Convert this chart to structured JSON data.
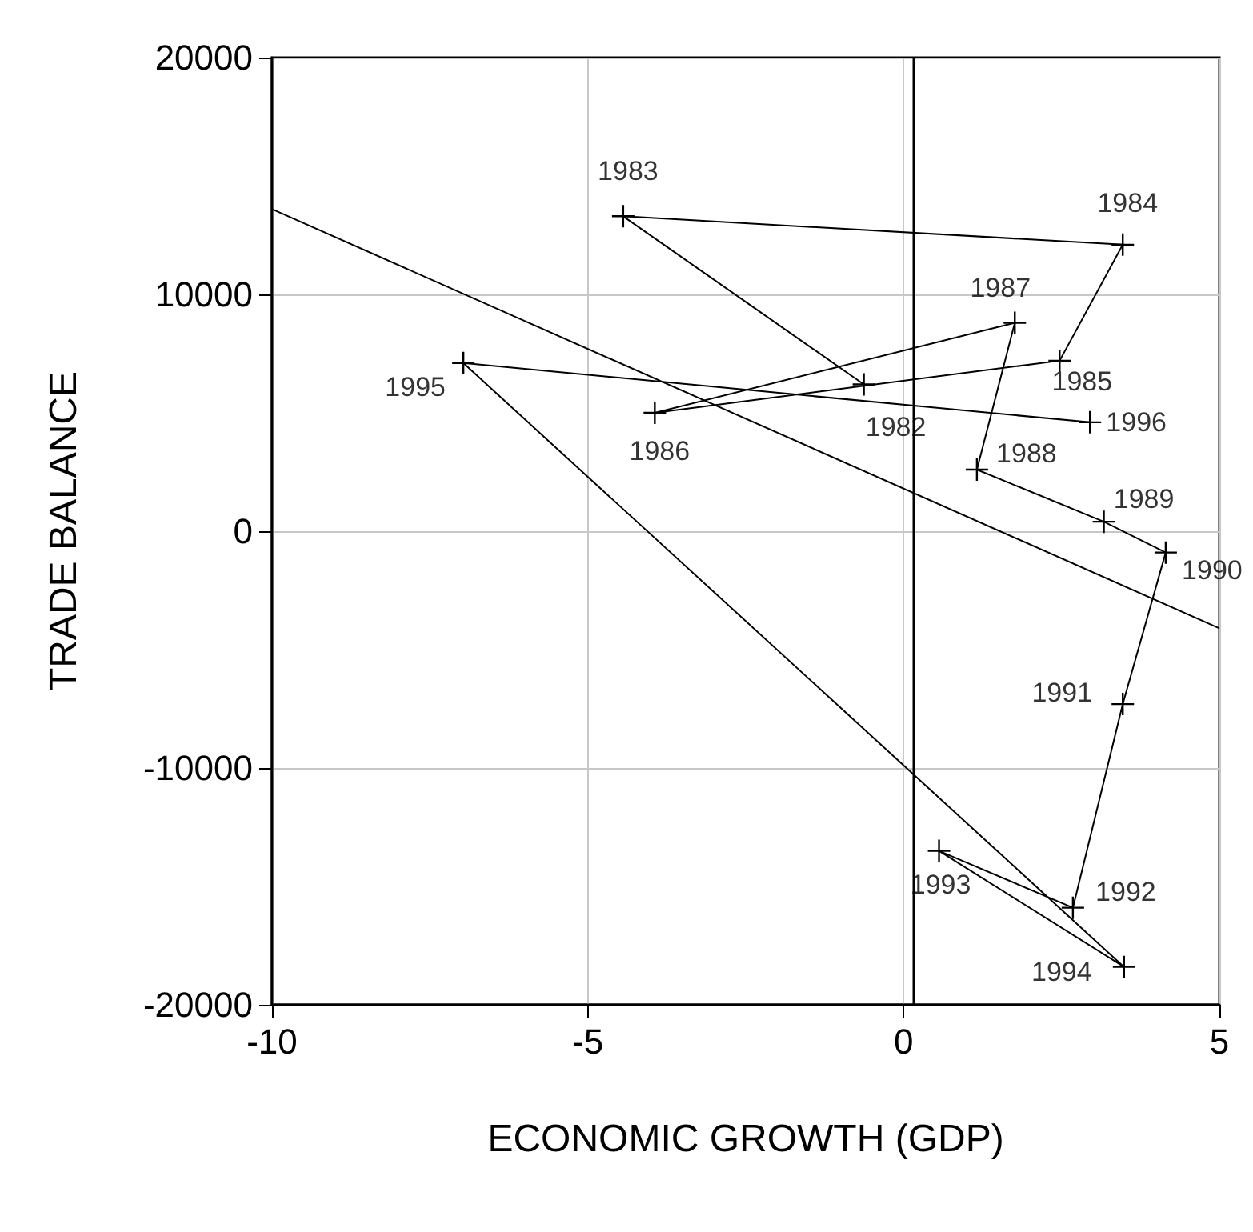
{
  "chart_data": {
    "type": "line",
    "xlabel": "ECONOMIC GROWTH (GDP)",
    "ylabel": "TRADE BALANCE",
    "xlim": [
      -10,
      5
    ],
    "xticks": [
      -10,
      -5,
      0,
      5
    ],
    "ylim": [
      -20000,
      20000
    ],
    "yticks": [
      -20000,
      -10000,
      0,
      10000,
      20000
    ],
    "grid": true,
    "marker": "cross",
    "line_style": "solid",
    "series": [
      {
        "color": "#000000",
        "x": [
          -0.63,
          -4.44,
          3.47,
          2.47,
          -3.94,
          1.76,
          1.16,
          3.17,
          4.15,
          3.47,
          2.68,
          0.56,
          3.49,
          -6.97,
          2.95
        ],
        "values": [
          6200,
          13300,
          12100,
          7200,
          5000,
          8800,
          2600,
          400,
          -900,
          -7300,
          -15900,
          -13500,
          -18400,
          7100,
          4600
        ]
      },
      {
        "color": "#000000",
        "marker": "none",
        "x": [
          -10,
          5
        ],
        "values": [
          13600,
          -4100
        ]
      }
    ],
    "ref_lines": [
      {
        "axis": "x",
        "value": 0.15,
        "color": "#000000"
      }
    ],
    "annotations": [
      {
        "text": "1982",
        "x": -0.63,
        "y": 6200
      },
      {
        "text": "1983",
        "x": -4.44,
        "y": 13300
      },
      {
        "text": "1984",
        "x": 3.47,
        "y": 12100
      },
      {
        "text": "1985",
        "x": 2.47,
        "y": 7200
      },
      {
        "text": "1986",
        "x": -3.94,
        "y": 5000
      },
      {
        "text": "1987",
        "x": 1.76,
        "y": 8800
      },
      {
        "text": "1988",
        "x": 1.16,
        "y": 2600
      },
      {
        "text": "1989",
        "x": 3.17,
        "y": 400
      },
      {
        "text": "1990",
        "x": 4.15,
        "y": -900
      },
      {
        "text": "1991",
        "x": 3.47,
        "y": -7300
      },
      {
        "text": "1992",
        "x": 2.68,
        "y": -15900
      },
      {
        "text": "1993",
        "x": 0.56,
        "y": -13500
      },
      {
        "text": "1994",
        "x": 3.49,
        "y": -18400
      },
      {
        "text": "1995",
        "x": -6.97,
        "y": 7100
      },
      {
        "text": "1996",
        "x": 2.95,
        "y": 4600
      }
    ]
  }
}
